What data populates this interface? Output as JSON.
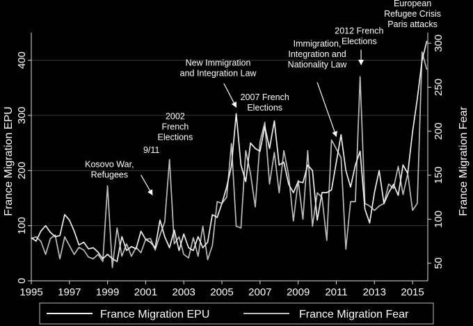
{
  "chart_data": {
    "type": "line",
    "title": "",
    "xlabel": "",
    "ylabel": "France Migration EPU",
    "y2label": "France Migration Fear",
    "xlim": [
      1995,
      2015.8
    ],
    "ylim": [
      0,
      450
    ],
    "y2lim": [
      30,
      312
    ],
    "grid": "horizontal",
    "legend_position": "bottom",
    "x_ticks": [
      1995,
      1997,
      1999,
      2001,
      2003,
      2005,
      2007,
      2009,
      2011,
      2013,
      2015
    ],
    "y_ticks": [
      0,
      100,
      200,
      300,
      400
    ],
    "y2_ticks": [
      50,
      100,
      150,
      200,
      250,
      300
    ],
    "series": [
      {
        "name": "France Migration EPU",
        "axis": "left",
        "color": "#f0f0f0",
        "x": [
          1995.0,
          1995.25,
          1995.5,
          1995.75,
          1996.0,
          1996.25,
          1996.5,
          1996.75,
          1997.0,
          1997.25,
          1997.5,
          1997.75,
          1998.0,
          1998.25,
          1998.5,
          1998.75,
          1999.0,
          1999.25,
          1999.5,
          1999.75,
          2000.0,
          2000.25,
          2000.5,
          2000.75,
          2001.0,
          2001.25,
          2001.5,
          2001.75,
          2002.0,
          2002.25,
          2002.5,
          2002.75,
          2003.0,
          2003.25,
          2003.5,
          2003.75,
          2004.0,
          2004.25,
          2004.5,
          2004.75,
          2005.0,
          2005.25,
          2005.5,
          2005.75,
          2006.0,
          2006.25,
          2006.5,
          2006.75,
          2007.0,
          2007.25,
          2007.5,
          2007.75,
          2008.0,
          2008.25,
          2008.5,
          2008.75,
          2009.0,
          2009.25,
          2009.5,
          2009.75,
          2010.0,
          2010.25,
          2010.5,
          2010.75,
          2011.0,
          2011.25,
          2011.5,
          2011.75,
          2012.0,
          2012.25,
          2012.5,
          2012.75,
          2013.0,
          2013.25,
          2013.5,
          2013.75,
          2014.0,
          2014.25,
          2014.5,
          2014.75,
          2015.0,
          2015.25,
          2015.5,
          2015.75
        ],
        "values": [
          78,
          72,
          90,
          100,
          88,
          80,
          82,
          120,
          110,
          90,
          65,
          70,
          58,
          60,
          52,
          40,
          48,
          40,
          35,
          80,
          55,
          62,
          58,
          90,
          75,
          70,
          60,
          110,
          80,
          60,
          92,
          55,
          85,
          60,
          55,
          80,
          60,
          70,
          120,
          115,
          140,
          170,
          208,
          303,
          210,
          180,
          250,
          240,
          235,
          280,
          240,
          290,
          210,
          215,
          175,
          160,
          180,
          178,
          210,
          200,
          110,
          160,
          160,
          165,
          215,
          265,
          200,
          170,
          210,
          235,
          130,
          105,
          160,
          200,
          140,
          160,
          175,
          155,
          210,
          195,
          270,
          330,
          400,
          435
        ]
      },
      {
        "name": "France Migration Fear",
        "axis": "right",
        "color": "#bdbdbd",
        "x": [
          1995.0,
          1995.25,
          1995.5,
          1995.75,
          1996.0,
          1996.25,
          1996.5,
          1996.75,
          1997.0,
          1997.25,
          1997.5,
          1997.75,
          1998.0,
          1998.25,
          1998.5,
          1998.75,
          1999.0,
          1999.25,
          1999.5,
          1999.75,
          2000.0,
          2000.25,
          2000.5,
          2000.75,
          2001.0,
          2001.25,
          2001.5,
          2001.75,
          2002.0,
          2002.25,
          2002.5,
          2002.75,
          2003.0,
          2003.25,
          2003.5,
          2003.75,
          2004.0,
          2004.25,
          2004.5,
          2004.75,
          2005.0,
          2005.25,
          2005.5,
          2005.75,
          2006.0,
          2006.25,
          2006.5,
          2006.75,
          2007.0,
          2007.25,
          2007.5,
          2007.75,
          2008.0,
          2008.25,
          2008.5,
          2008.75,
          2009.0,
          2009.25,
          2009.5,
          2009.75,
          2010.0,
          2010.25,
          2010.5,
          2010.75,
          2011.0,
          2011.25,
          2011.5,
          2011.75,
          2012.0,
          2012.25,
          2012.5,
          2012.75,
          2013.0,
          2013.25,
          2013.5,
          2013.75,
          2014.0,
          2014.25,
          2014.5,
          2014.75,
          2015.0,
          2015.25,
          2015.5,
          2015.75
        ],
        "values": [
          78,
          80,
          75,
          60,
          78,
          82,
          55,
          80,
          70,
          60,
          68,
          65,
          57,
          55,
          60,
          52,
          138,
          45,
          90,
          58,
          72,
          58,
          68,
          62,
          77,
          78,
          65,
          82,
          97,
          168,
          72,
          80,
          60,
          56,
          79,
          58,
          92,
          54,
          70,
          120,
          118,
          125,
          186,
          92,
          90,
          178,
          152,
          114,
          188,
          210,
          140,
          176,
          130,
          178,
          150,
          98,
          144,
          100,
          178,
          92,
          130,
          125,
          76,
          190,
          180,
          170,
          66,
          120,
          120,
          262,
          118,
          115,
          110,
          115,
          118,
          140,
          135,
          160,
          128,
          152,
          110,
          118,
          290,
          270
        ]
      }
    ],
    "annotations": [
      {
        "lines": [
          "Kosovo War,",
          "Refugees"
        ],
        "x": 1999.1,
        "y": 206
      },
      {
        "lines": [
          "9/11"
        ],
        "x": 2001.3,
        "y": 232
      },
      {
        "lines": [
          "2002",
          "French",
          "Elections"
        ],
        "x": 2002.55,
        "y": 293
      },
      {
        "lines": [
          "New Immigration",
          "and Integration Law"
        ],
        "x": 2004.8,
        "y": 390
      },
      {
        "lines": [
          "2007 French",
          "Elections"
        ],
        "x": 2007.25,
        "y": 328
      },
      {
        "lines": [
          "Immigration,",
          "Integration and",
          "Nationality Law"
        ],
        "x": 2010.0,
        "y": 425
      },
      {
        "lines": [
          "2012 French",
          "Elections"
        ],
        "x": 2012.2,
        "y": 448
      },
      {
        "lines": [
          "European",
          "Refugee Crisis",
          "Paris attacks"
        ],
        "x": 2015.0,
        "y": 498
      }
    ],
    "arrows": [
      {
        "from": [
          2000.75,
          192
        ],
        "to": [
          2001.35,
          156
        ]
      },
      {
        "from": [
          2005.1,
          358
        ],
        "to": [
          2005.75,
          315
        ]
      },
      {
        "from": [
          2010.0,
          360
        ],
        "to": [
          2011.0,
          262
        ]
      },
      {
        "from": [
          2012.3,
          419
        ],
        "to": [
          2012.3,
          392
        ]
      }
    ]
  }
}
